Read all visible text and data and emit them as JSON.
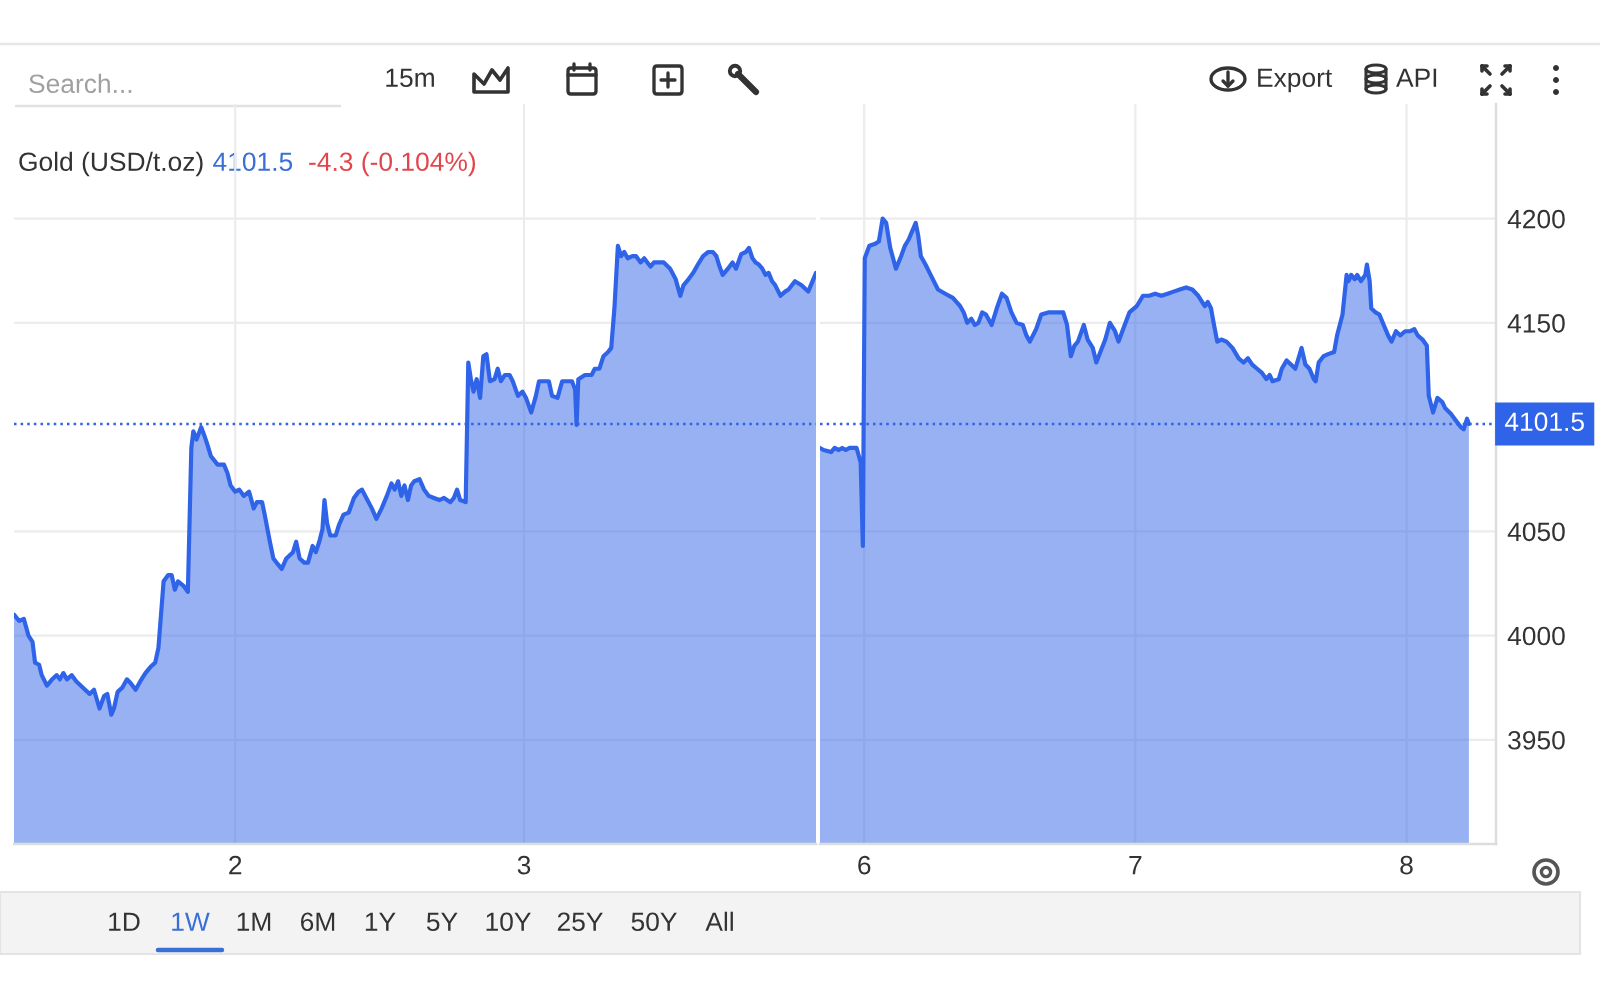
{
  "chart_data": [
    {
      "type": "area",
      "title": "Gold (USD/t.oz)",
      "annotations": [
        "4101.5",
        "-4.3 (-0.104%)",
        "Search...",
        "15m",
        "Export",
        "API",
        "1D",
        "1W",
        "1M",
        "6M",
        "1Y",
        "5Y",
        "10Y",
        "25Y",
        "50Y",
        "All"
      ],
      "x": [
        1.234,
        1.252,
        1.268,
        1.284,
        1.298,
        1.307,
        1.321,
        1.33,
        1.348,
        1.366,
        1.382,
        1.393,
        1.405,
        1.417,
        1.434,
        1.45,
        1.473,
        1.496,
        1.511,
        1.53,
        1.546,
        1.557,
        1.571,
        1.58,
        1.593,
        1.609,
        1.625,
        1.639,
        1.655,
        1.671,
        1.689,
        1.707,
        1.723,
        1.734,
        1.752,
        1.768,
        1.78,
        1.791,
        1.802,
        1.82,
        1.836,
        1.848,
        1.855,
        1.866,
        1.882,
        1.893,
        1.905,
        1.916,
        1.939,
        1.961,
        1.973,
        1.984,
        2.0,
        2.014,
        2.03,
        2.048,
        2.064,
        2.075,
        2.093,
        2.102,
        2.12,
        2.132,
        2.143,
        2.161,
        2.177,
        2.2,
        2.211,
        2.223,
        2.239,
        2.252,
        2.268,
        2.279,
        2.291,
        2.302,
        2.309,
        2.318,
        2.329,
        2.348,
        2.359,
        2.375,
        2.393,
        2.411,
        2.427,
        2.439,
        2.454,
        2.473,
        2.489,
        2.507,
        2.525,
        2.541,
        2.552,
        2.564,
        2.575,
        2.586,
        2.598,
        2.609,
        2.62,
        2.638,
        2.654,
        2.67,
        2.688,
        2.707,
        2.723,
        2.745,
        2.757,
        2.768,
        2.779,
        2.798,
        2.807,
        2.816,
        2.825,
        2.836,
        2.848,
        2.859,
        2.87,
        2.882,
        2.898,
        2.909,
        2.92,
        2.934,
        2.95,
        2.961,
        2.979,
        2.995,
        3.007,
        3.025,
        3.041,
        3.052,
        3.07,
        3.086,
        3.097,
        3.116,
        3.132,
        3.147,
        3.166,
        3.177,
        3.182,
        3.188,
        3.211,
        3.234,
        3.245,
        3.261,
        3.275,
        3.291,
        3.302,
        3.313,
        3.325,
        3.336,
        3.347,
        3.359,
        3.375,
        3.388,
        3.404,
        3.416,
        3.427,
        3.438,
        3.45,
        3.468,
        3.484,
        3.506,
        3.525,
        3.541,
        3.552,
        3.57,
        3.586,
        3.602,
        3.62,
        3.638,
        3.654,
        3.666,
        3.677,
        3.688,
        3.706,
        3.722,
        3.734,
        3.752,
        3.768,
        3.779,
        3.791,
        3.802,
        3.813,
        3.825,
        3.836,
        3.847,
        3.859,
        3.87,
        3.888,
        3.904,
        3.916,
        3.938,
        3.961,
        3.984,
        4.002,
        4.011
      ],
      "series": [
        {
          "color": "#2f63e8",
          "values": [
            4010,
            4007,
            4008,
            4000,
            3997,
            3987,
            3986,
            3981,
            3976,
            3979,
            3981,
            3979,
            3982,
            3979,
            3981,
            3978,
            3975,
            3972,
            3974,
            3965,
            3971,
            3972,
            3962,
            3965,
            3973,
            3975,
            3979,
            3977,
            3974,
            3978,
            3982,
            3985,
            3987,
            3994,
            4026,
            4029,
            4029,
            4022,
            4026,
            4024,
            4021,
            4090,
            4098,
            4094,
            4100,
            4096,
            4091,
            4086,
            4082,
            4082,
            4078,
            4072,
            4069,
            4070,
            4067,
            4069,
            4061,
            4064,
            4064,
            4058,
            4045,
            4037,
            4035,
            4032,
            4037,
            4040,
            4045,
            4037,
            4035,
            4035,
            4043,
            4040,
            4045,
            4051,
            4065,
            4054,
            4048,
            4048,
            4053,
            4058,
            4059,
            4066,
            4069,
            4070,
            4066,
            4061,
            4056,
            4061,
            4067,
            4073,
            4070,
            4074,
            4067,
            4072,
            4065,
            4072,
            4074,
            4075,
            4070,
            4067,
            4066,
            4065,
            4066,
            4064,
            4066,
            4070,
            4065,
            4064,
            4131,
            4123,
            4117,
            4123,
            4114,
            4134,
            4135,
            4122,
            4123,
            4128,
            4122,
            4125,
            4125,
            4122,
            4115,
            4117,
            4114,
            4107,
            4115,
            4122,
            4122,
            4122,
            4115,
            4114,
            4122,
            4122,
            4122,
            4118,
            4101,
            4123,
            4125,
            4125,
            4128,
            4128,
            4134,
            4136,
            4138,
            4157,
            4187,
            4182,
            4184,
            4181,
            4182,
            4182,
            4179,
            4181,
            4179,
            4177,
            4179,
            4179,
            4179,
            4176,
            4171,
            4163,
            4168,
            4171,
            4174,
            4178,
            4182,
            4184,
            4184,
            4182,
            4177,
            4173,
            4176,
            4179,
            4176,
            4183,
            4184,
            4186,
            4181,
            4179,
            4178,
            4176,
            4173,
            4174,
            4170,
            4168,
            4163,
            4165,
            4166,
            4170,
            4168,
            4165,
            4171,
            4174
          ]
        }
      ],
      "xlim": [
        1.234,
        4.011
      ],
      "xticks": [
        2,
        3
      ],
      "ylim": [
        3900,
        4255
      ],
      "yticks": [
        3950,
        4000,
        4050,
        4150,
        4200
      ],
      "tick_labels": "x",
      "grid": true,
      "ref_lines": [
        {
          "axis": "y",
          "value": 4101.5,
          "color": "#2f63e8",
          "line_style": "dotted"
        }
      ]
    },
    {
      "type": "area",
      "x": [
        5.837,
        5.85,
        5.878,
        5.891,
        5.906,
        5.919,
        5.932,
        5.946,
        5.972,
        5.987,
        5.995,
        6.002,
        6.019,
        6.041,
        6.054,
        6.068,
        6.081,
        6.096,
        6.117,
        6.136,
        6.15,
        6.164,
        6.177,
        6.19,
        6.199,
        6.209,
        6.226,
        6.245,
        6.272,
        6.299,
        6.327,
        6.354,
        6.367,
        6.38,
        6.395,
        6.408,
        6.421,
        6.435,
        6.449,
        6.47,
        6.489,
        6.508,
        6.525,
        6.543,
        6.562,
        6.585,
        6.598,
        6.611,
        6.634,
        6.653,
        6.679,
        6.707,
        6.734,
        6.748,
        6.762,
        6.775,
        6.788,
        6.81,
        6.824,
        6.843,
        6.856,
        6.871,
        6.889,
        6.906,
        6.925,
        6.938,
        6.952,
        6.978,
        7.005,
        7.028,
        7.051,
        7.073,
        7.096,
        7.119,
        7.141,
        7.164,
        7.187,
        7.21,
        7.232,
        7.256,
        7.267,
        7.279,
        7.29,
        7.302,
        7.317,
        7.336,
        7.358,
        7.381,
        7.399,
        7.415,
        7.431,
        7.449,
        7.467,
        7.483,
        7.495,
        7.506,
        7.529,
        7.54,
        7.558,
        7.574,
        7.59,
        7.604,
        7.613,
        7.627,
        7.642,
        7.658,
        7.665,
        7.676,
        7.694,
        7.711,
        7.733,
        7.744,
        7.764,
        7.779,
        7.786,
        7.796,
        7.809,
        7.818,
        7.832,
        7.848,
        7.854,
        7.864,
        7.87,
        7.886,
        7.9,
        7.916,
        7.932,
        7.945,
        7.961,
        7.977,
        7.995,
        8.014,
        8.029,
        8.041,
        8.059,
        8.075,
        8.082,
        8.098,
        8.114,
        8.132,
        8.143,
        8.166,
        8.177,
        8.2,
        8.211,
        8.223,
        8.23
      ],
      "series": [
        {
          "color": "#2f63e8",
          "values": [
            4090,
            4089,
            4088,
            4090,
            4089,
            4090,
            4089,
            4090,
            4090,
            4083,
            4043,
            4181,
            4187,
            4188,
            4189,
            4200,
            4198,
            4186,
            4176,
            4182,
            4187,
            4190,
            4194,
            4198,
            4192,
            4182,
            4178,
            4173,
            4166,
            4164,
            4162,
            4158,
            4155,
            4150,
            4152,
            4149,
            4150,
            4155,
            4154,
            4149,
            4157,
            4164,
            4162,
            4155,
            4150,
            4149,
            4144,
            4141,
            4147,
            4154,
            4155,
            4155,
            4155,
            4149,
            4134,
            4139,
            4141,
            4149,
            4142,
            4138,
            4131,
            4136,
            4142,
            4150,
            4146,
            4141,
            4146,
            4155,
            4158,
            4163,
            4163,
            4164,
            4163,
            4164,
            4165,
            4166,
            4167,
            4166,
            4163,
            4158,
            4160,
            4157,
            4149,
            4141,
            4142,
            4141,
            4138,
            4133,
            4131,
            4133,
            4130,
            4128,
            4126,
            4123,
            4125,
            4122,
            4123,
            4128,
            4132,
            4130,
            4128,
            4134,
            4138,
            4130,
            4128,
            4123,
            4122,
            4131,
            4134,
            4135,
            4136,
            4144,
            4154,
            4173,
            4170,
            4173,
            4171,
            4173,
            4170,
            4173,
            4178,
            4170,
            4157,
            4155,
            4154,
            4149,
            4144,
            4141,
            4146,
            4144,
            4146,
            4146,
            4147,
            4144,
            4142,
            4139,
            4115,
            4107,
            4114,
            4112,
            4109,
            4106,
            4104,
            4100,
            4099,
            4104,
            4101.5
          ]
        }
      ],
      "xlim": [
        5.837,
        8.33
      ],
      "xticks": [
        6,
        7,
        8
      ],
      "ylim": [
        3900,
        4255
      ],
      "yticks": [
        3950,
        4000,
        4050,
        4150,
        4200
      ],
      "grid": true,
      "ref_lines": [
        {
          "axis": "y",
          "value": 4101.5,
          "label": "4101.5",
          "color": "#2f63e8",
          "line_style": "dotted"
        }
      ]
    }
  ]
}
